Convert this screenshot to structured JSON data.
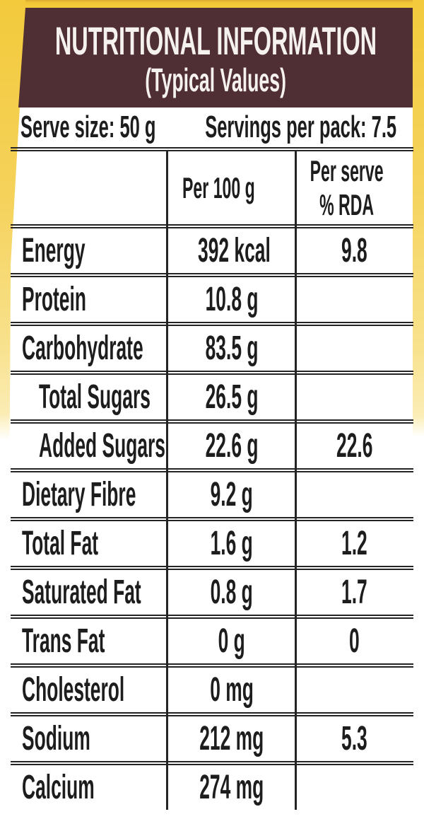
{
  "header": {
    "title": "NUTRITIONAL INFORMATION",
    "subtitle": "(Typical Values)"
  },
  "serving": {
    "serve_size": "Serve size: 50 g",
    "servings_per_pack": "Servings per pack: 7.5"
  },
  "table": {
    "col_per100": "Per 100 g",
    "col_serve_line1": "Per serve",
    "col_serve_line2": "% RDA",
    "rows": [
      {
        "label": "Energy",
        "per100": "392 kcal",
        "rda": "9.8",
        "indent": false
      },
      {
        "label": "Protein",
        "per100": "10.8 g",
        "rda": "",
        "indent": false
      },
      {
        "label": "Carbohydrate",
        "per100": "83.5 g",
        "rda": "",
        "indent": false
      },
      {
        "label": "Total Sugars",
        "per100": "26.5 g",
        "rda": "",
        "indent": true
      },
      {
        "label": "Added Sugars",
        "per100": "22.6 g",
        "rda": "22.6",
        "indent": true
      },
      {
        "label": "Dietary Fibre",
        "per100": "9.2 g",
        "rda": "",
        "indent": false
      },
      {
        "label": "Total Fat",
        "per100": "1.6 g",
        "rda": "1.2",
        "indent": false
      },
      {
        "label": "Saturated Fat",
        "per100": "0.8 g",
        "rda": "1.7",
        "indent": false
      },
      {
        "label": "Trans Fat",
        "per100": "0 g",
        "rda": "0",
        "indent": false
      },
      {
        "label": "Cholesterol",
        "per100": "0 mg",
        "rda": "",
        "indent": false
      },
      {
        "label": "Sodium",
        "per100": "212 mg",
        "rda": "5.3",
        "indent": false
      },
      {
        "label": "Calcium",
        "per100": "274 mg",
        "rda": "",
        "indent": false
      }
    ]
  },
  "colors": {
    "package_yellow": "#F5CE3B",
    "banner_maroon": "#4F2E34",
    "grid_line": "#242424",
    "text_dark": "#1D1D1D",
    "text_light": "#F5F1EF"
  }
}
